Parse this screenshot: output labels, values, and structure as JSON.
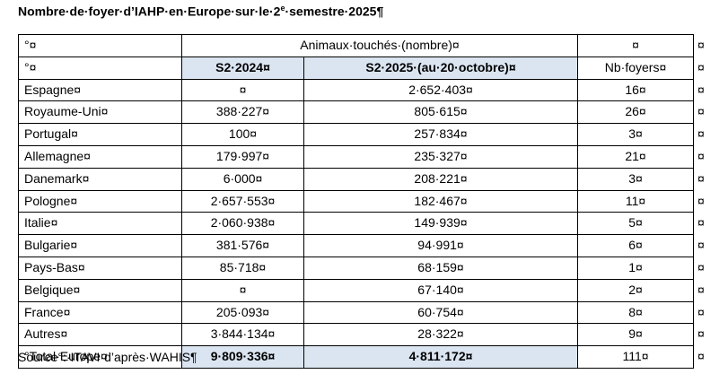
{
  "title": {
    "text_before": "Nombre·de·foyer·d’IAHP·en·Europe·sur·le·2",
    "superscript": "e",
    "text_after": "·semestre·2025¶"
  },
  "table": {
    "header": [
      {
        "cells": [
          "°¤",
          "Animaux·touchés·(nombre)¤",
          "¤"
        ],
        "end": "¤"
      },
      {
        "cells": [
          "°¤",
          "S2·2024¤",
          "S2·2025·(au·20·octobre)¤",
          "Nb·foyers¤"
        ],
        "end": "¤"
      }
    ],
    "rows": [
      {
        "cells": [
          "Espagne¤",
          "¤",
          "2·652·403¤",
          "16¤"
        ],
        "end": "¤"
      },
      {
        "cells": [
          "Royaume-Uni¤",
          "388·227¤",
          "805·615¤",
          "26¤"
        ],
        "end": "¤"
      },
      {
        "cells": [
          "Portugal¤",
          "100¤",
          "257·834¤",
          "3¤"
        ],
        "end": "¤"
      },
      {
        "cells": [
          "Allemagne¤",
          "179·997¤",
          "235·327¤",
          "21¤"
        ],
        "end": "¤"
      },
      {
        "cells": [
          "Danemark¤",
          "6·000¤",
          "208·221¤",
          "3¤"
        ],
        "end": "¤"
      },
      {
        "cells": [
          "Pologne¤",
          "2·657·553¤",
          "182·467¤",
          "11¤"
        ],
        "end": "¤"
      },
      {
        "cells": [
          "Italie¤",
          "2·060·938¤",
          "149·939¤",
          "5¤"
        ],
        "end": "¤"
      },
      {
        "cells": [
          "Bulgarie¤",
          "381·576¤",
          "94·991¤",
          "6¤"
        ],
        "end": "¤"
      },
      {
        "cells": [
          "Pays-Bas¤",
          "85·718¤",
          "68·159¤",
          "1¤"
        ],
        "end": "¤"
      },
      {
        "cells": [
          "Belgique¤",
          "¤",
          "67·140¤",
          "2¤"
        ],
        "end": "¤"
      },
      {
        "cells": [
          "France¤",
          "205·093¤",
          "60·754¤",
          "8¤"
        ],
        "end": "¤"
      },
      {
        "cells": [
          "Autres¤",
          "3·844·134¤",
          "28·322¤",
          "9¤"
        ],
        "end": "¤"
      }
    ],
    "total": {
      "cells": [
        "°Total·Europe¤",
        "9·809·336¤",
        "4·811·172¤",
        "111¤"
      ],
      "end": "¤"
    }
  },
  "source": "Source°:·ITAVI·d’après·WAHIS¶"
}
